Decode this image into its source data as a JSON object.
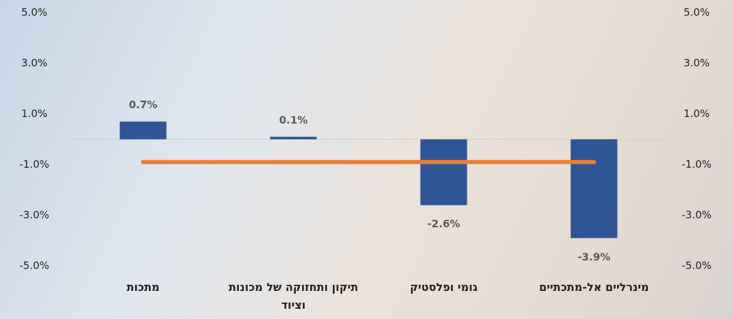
{
  "chart_data": {
    "type": "bar",
    "categories": [
      "מתכות",
      "תיקון ותחזוקה של מכונות וציוד",
      "גומי ופלסטיק",
      "מינרליים אל-מתכתיים"
    ],
    "series": [
      {
        "type": "bar",
        "color": "#2f5597",
        "values": [
          0.7,
          0.1,
          -2.6,
          -3.9
        ],
        "value_labels": [
          "0.7%",
          "0.1%",
          "-2.6%",
          "-3.9%"
        ]
      },
      {
        "type": "line",
        "color": "#ed7d31",
        "values": [
          -0.9,
          -0.9,
          -0.9,
          -0.9
        ]
      }
    ],
    "ylim": [
      -5,
      5
    ],
    "yticks": [
      {
        "value": 5,
        "label": "5.0%"
      },
      {
        "value": 3,
        "label": "3.0%"
      },
      {
        "value": 1,
        "label": "1.0%"
      },
      {
        "value": -1,
        "label": "-1.0%"
      },
      {
        "value": -3,
        "label": "-3.0%"
      },
      {
        "value": -5,
        "label": "-5.0%"
      }
    ],
    "y2lim": [
      -5,
      5
    ],
    "y2ticks": [
      {
        "value": 5,
        "label": "5.0%"
      },
      {
        "value": 3,
        "label": "3.0%"
      },
      {
        "value": 1,
        "label": "1.0%"
      },
      {
        "value": -1,
        "label": "-1.0%"
      },
      {
        "value": -3,
        "label": "-3.0%"
      },
      {
        "value": -5,
        "label": "-5.0%"
      }
    ]
  }
}
